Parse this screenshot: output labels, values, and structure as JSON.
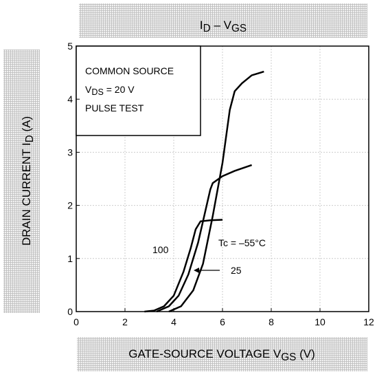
{
  "chart_data": {
    "type": "line",
    "title": [
      "I",
      "D",
      " – V",
      "GS"
    ],
    "xlabel": [
      "GATE-SOURCE VOLTAGE   V",
      "GS",
      "   (V)"
    ],
    "ylabel": [
      "DRAIN CURRENT   I",
      "D",
      "   (A)"
    ],
    "conditions": [
      [
        "COMMON SOURCE"
      ],
      [
        "V",
        "DS",
        " = 20 V"
      ],
      [
        "PULSE TEST"
      ]
    ],
    "xlim": [
      0,
      12
    ],
    "xticks": [
      0,
      2,
      4,
      6,
      8,
      10,
      12
    ],
    "ylim": [
      0,
      5
    ],
    "yticks": [
      0,
      1,
      2,
      3,
      4,
      5
    ],
    "grid": true,
    "series": [
      {
        "name": "100",
        "color": "#000000",
        "x": [
          2.8,
          3.2,
          3.6,
          4.0,
          4.4,
          4.7,
          4.9,
          5.1,
          5.5,
          6.0
        ],
        "values": [
          0,
          0.02,
          0.1,
          0.3,
          0.75,
          1.2,
          1.55,
          1.7,
          1.72,
          1.73
        ]
      },
      {
        "name": "25",
        "color": "#000000",
        "x": [
          3.3,
          3.8,
          4.2,
          4.6,
          5.0,
          5.3,
          5.5,
          5.6,
          6.0,
          6.5,
          7.2
        ],
        "values": [
          0,
          0.1,
          0.3,
          0.7,
          1.3,
          1.9,
          2.3,
          2.42,
          2.55,
          2.65,
          2.76
        ]
      },
      {
        "name": "Tc = –55°C",
        "color": "#000000",
        "x": [
          3.8,
          4.3,
          4.8,
          5.2,
          5.6,
          6.0,
          6.3,
          6.5,
          6.8,
          7.2,
          7.7
        ],
        "values": [
          0,
          0.1,
          0.4,
          0.9,
          1.8,
          2.8,
          3.8,
          4.15,
          4.3,
          4.45,
          4.52
        ]
      }
    ]
  }
}
